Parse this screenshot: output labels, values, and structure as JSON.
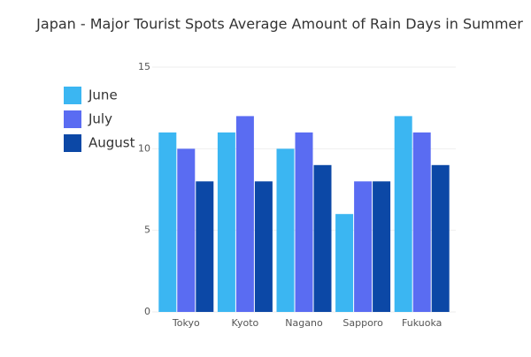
{
  "chart_data": {
    "type": "bar",
    "title": "Japan - Major Tourist Spots Average Amount of Rain Days in Summer",
    "categories": [
      "Tokyo",
      "Kyoto",
      "Nagano",
      "Sapporo",
      "Fukuoka"
    ],
    "series": [
      {
        "name": "June",
        "color": "#3bb6f2",
        "values": [
          11,
          11,
          10,
          6,
          12
        ]
      },
      {
        "name": "July",
        "color": "#5a6cf2",
        "values": [
          10,
          12,
          11,
          8,
          11
        ]
      },
      {
        "name": "August",
        "color": "#0c48a6",
        "values": [
          8,
          8,
          9,
          8,
          9
        ]
      }
    ],
    "ylim": [
      0,
      15
    ],
    "yticks": [
      0,
      5,
      10,
      15
    ],
    "grid": true,
    "legend": "left"
  }
}
